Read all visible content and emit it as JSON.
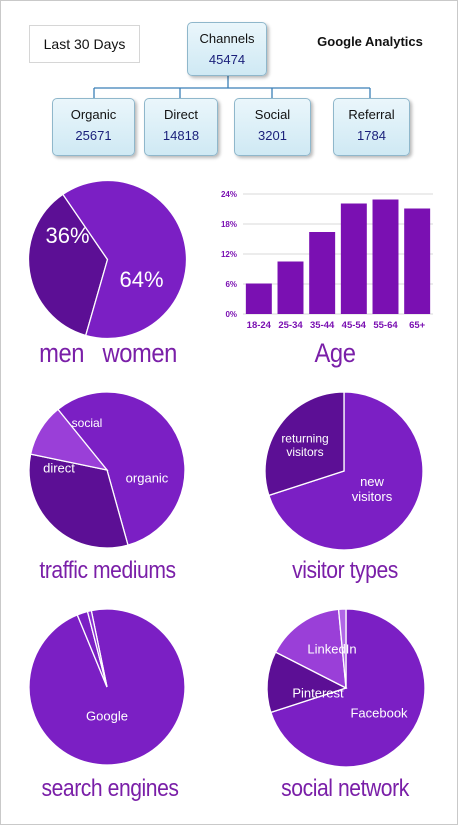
{
  "header": {
    "period_label": "Last 30 Days",
    "brand": "Google Analytics"
  },
  "channels": {
    "root": {
      "label": "Channels",
      "value": "45474"
    },
    "children": [
      {
        "label": "Organic",
        "value": "25671"
      },
      {
        "label": "Direct",
        "value": "14818"
      },
      {
        "label": "Social",
        "value": "3201"
      },
      {
        "label": "Referral",
        "value": "1784"
      }
    ],
    "box_fill": "#d8eef8",
    "line_color": "#3a7fb6"
  },
  "colors": {
    "purple_main": "#7b1fc4",
    "purple_dark": "#5c0f95",
    "purple_light": "#9a3fd8",
    "title_color": "#7a1fa8"
  },
  "chart_data": [
    {
      "type": "pie",
      "id": "gender",
      "title": "men   women",
      "slices": [
        {
          "label": "36%",
          "value": 36,
          "color": "#5c0f95"
        },
        {
          "label": "64%",
          "value": 64,
          "color": "#7b1fc4"
        }
      ]
    },
    {
      "type": "bar",
      "id": "age",
      "title": "Age",
      "categories": [
        "18-24",
        "25-34",
        "35-44",
        "45-54",
        "55-64",
        "65+"
      ],
      "values": [
        6.1,
        10.5,
        16.4,
        22.1,
        22.9,
        21.1
      ],
      "ylim": [
        0,
        24
      ],
      "yticks": [
        "0%",
        "6%",
        "12%",
        "18%",
        "24%"
      ],
      "ytick_values": [
        0,
        6,
        12,
        18,
        24
      ],
      "grid": true,
      "color": "#7a10b2"
    },
    {
      "type": "pie",
      "id": "traffic",
      "title": "traffic mediums",
      "slices": [
        {
          "label": "organic",
          "value": 56.5,
          "color": "#7b1fc4"
        },
        {
          "label": "direct",
          "value": 32.6,
          "color": "#5c0f95"
        },
        {
          "label": "social",
          "value": 10.9,
          "color": "#9a3fd8"
        }
      ]
    },
    {
      "type": "pie",
      "id": "visitors",
      "title": "visitor types",
      "slices": [
        {
          "label": "new visitors",
          "value": 70,
          "color": "#7b1fc4"
        },
        {
          "label": "returning visitors",
          "value": 30,
          "color": "#5c0f95"
        }
      ]
    },
    {
      "type": "pie",
      "id": "search",
      "title": "search engines",
      "slices": [
        {
          "label": "Google",
          "value": 97,
          "color": "#7b1fc4"
        },
        {
          "label": "",
          "value": 2.2,
          "color": "#7b1fc4"
        },
        {
          "label": "",
          "value": 0.8,
          "color": "#8a2ed0"
        }
      ]
    },
    {
      "type": "pie",
      "id": "social",
      "title": "social network",
      "slices": [
        {
          "label": "Facebook",
          "value": 70,
          "color": "#7b1fc4"
        },
        {
          "label": "Pinterest",
          "value": 12.5,
          "color": "#5c0f95"
        },
        {
          "label": "LinkedIn",
          "value": 16,
          "color": "#9a3fd8"
        },
        {
          "label": "",
          "value": 1.5,
          "color": "#b066e6"
        }
      ]
    }
  ]
}
